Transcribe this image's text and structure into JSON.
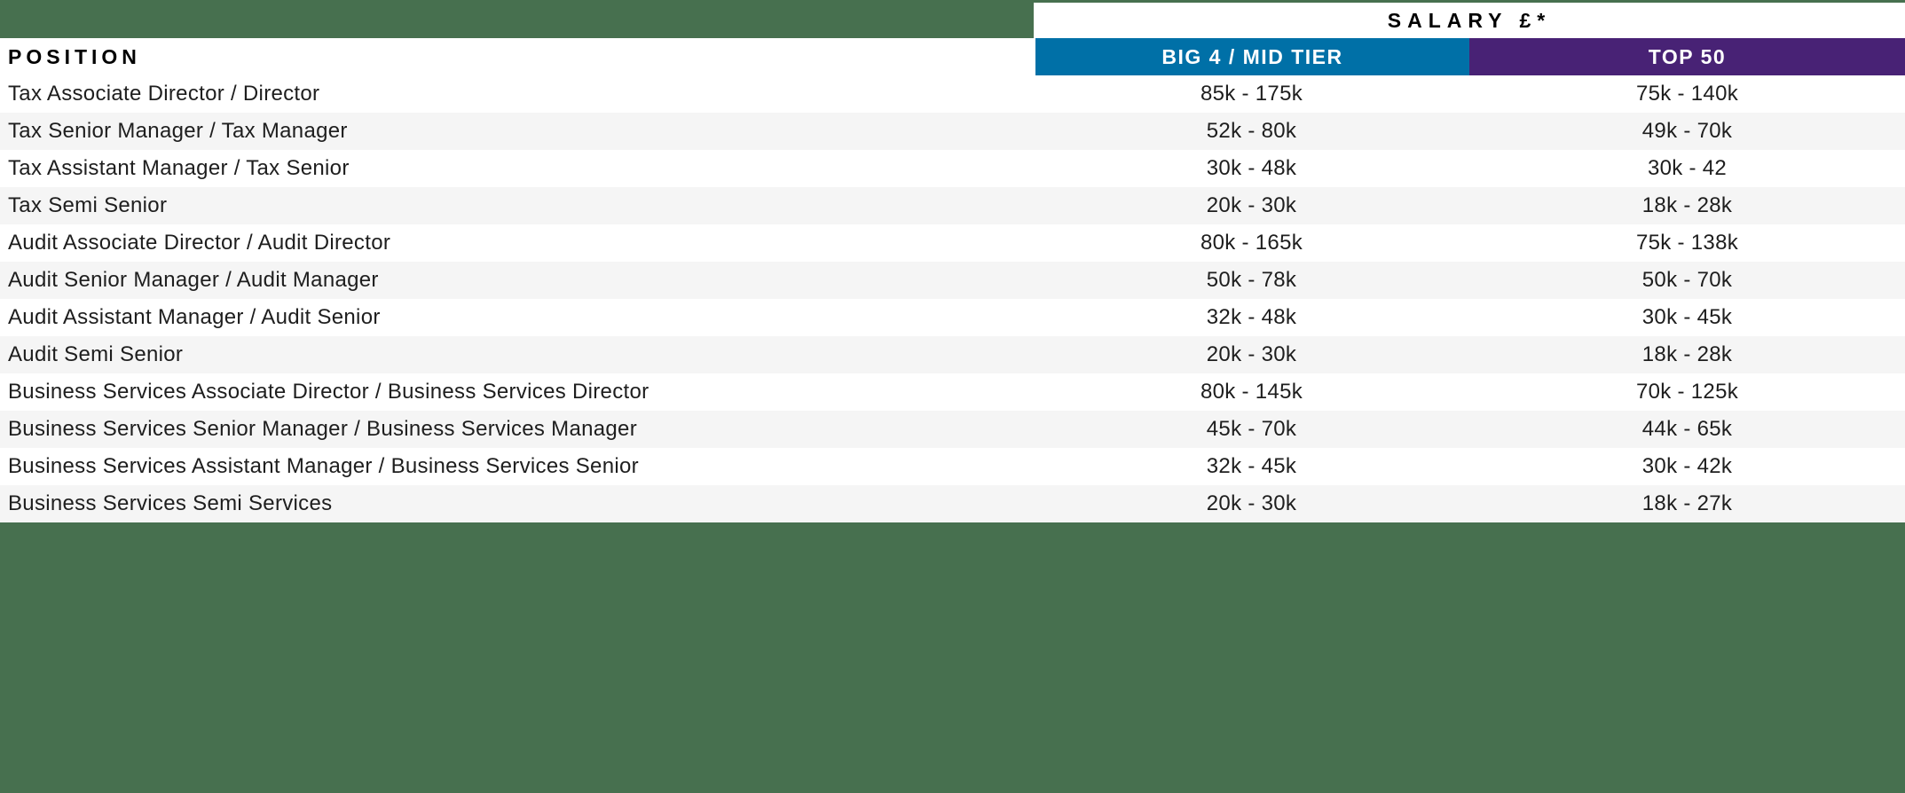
{
  "colors": {
    "green": "#47704F",
    "blue": "#0070A7",
    "purple": "#482275",
    "row_alt": "#F5F5F5",
    "header_underline": "#DBD9E7",
    "text": "#1E1E1E"
  },
  "header": {
    "salary_title": "SALARY £*",
    "position_label": "POSITION",
    "column1_label": "BIG 4 / MID TIER",
    "column2_label": "TOP 50"
  },
  "table": {
    "rows": [
      {
        "position": "Tax Associate Director / Director",
        "big4_mid_tier": "85k - 175k",
        "top50": "75k - 140k"
      },
      {
        "position": "Tax Senior Manager / Tax Manager",
        "big4_mid_tier": "52k - 80k",
        "top50": "49k - 70k"
      },
      {
        "position": "Tax Assistant Manager / Tax Senior",
        "big4_mid_tier": "30k - 48k",
        "top50": "30k - 42"
      },
      {
        "position": "Tax Semi Senior",
        "big4_mid_tier": "20k - 30k",
        "top50": "18k - 28k"
      },
      {
        "position": "Audit Associate Director / Audit Director",
        "big4_mid_tier": "80k - 165k",
        "top50": "75k - 138k"
      },
      {
        "position": "Audit Senior Manager / Audit Manager",
        "big4_mid_tier": "50k - 78k",
        "top50": "50k - 70k"
      },
      {
        "position": "Audit Assistant Manager / Audit Senior",
        "big4_mid_tier": "32k - 48k",
        "top50": "30k - 45k"
      },
      {
        "position": "Audit Semi Senior",
        "big4_mid_tier": "20k - 30k",
        "top50": "18k - 28k"
      },
      {
        "position": "Business Services Associate Director / Business Services Director",
        "big4_mid_tier": "80k - 145k",
        "top50": "70k - 125k"
      },
      {
        "position": "Business Services Senior Manager / Business Services Manager",
        "big4_mid_tier": "45k - 70k",
        "top50": "44k - 65k"
      },
      {
        "position": "Business Services Assistant Manager / Business Services Senior",
        "big4_mid_tier": "32k - 45k",
        "top50": "30k - 42k"
      },
      {
        "position": "Business Services Semi Services",
        "big4_mid_tier": "20k - 30k",
        "top50": "18k - 27k"
      }
    ]
  }
}
